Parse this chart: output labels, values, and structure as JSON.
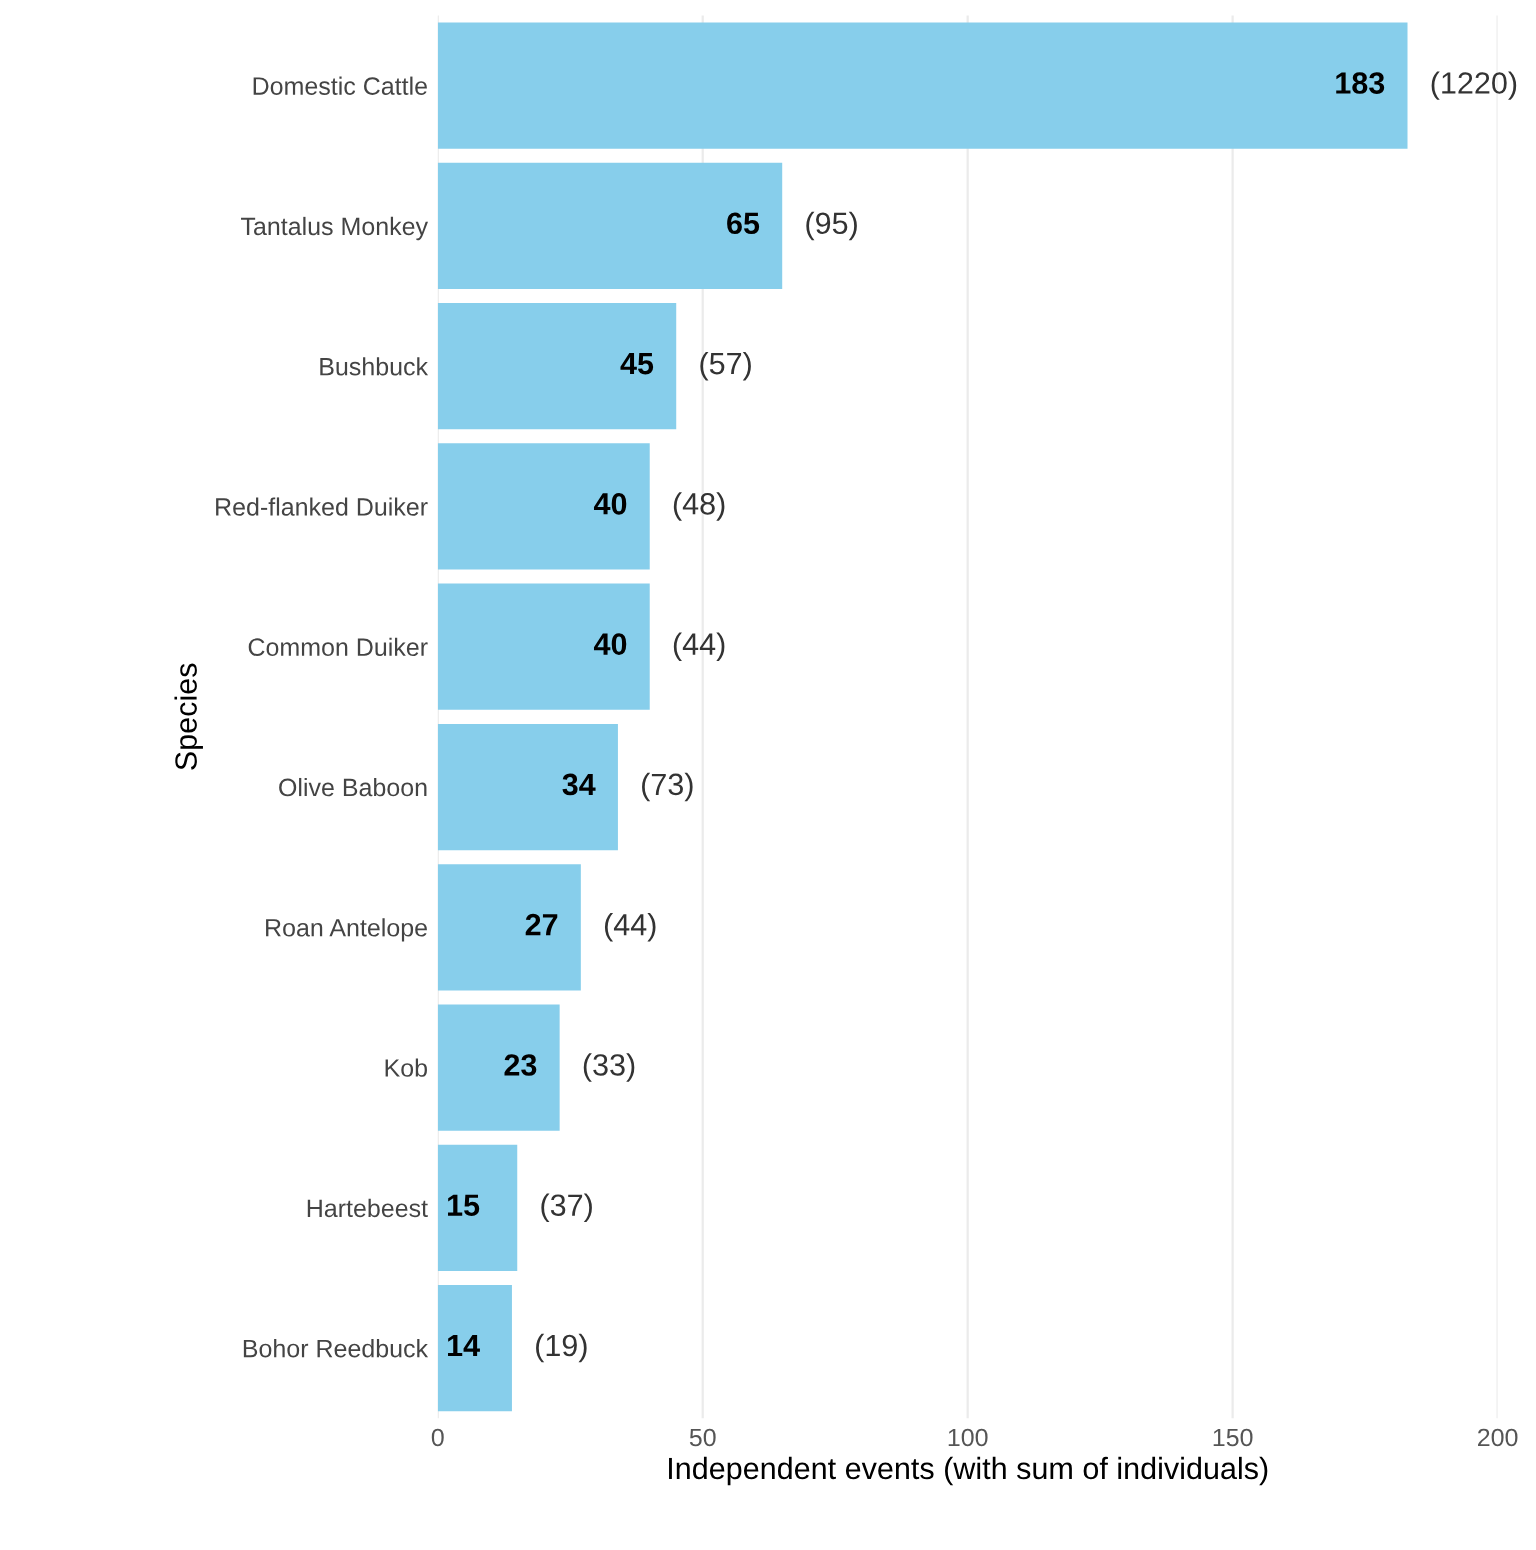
{
  "chart_data": {
    "type": "bar",
    "orientation": "horizontal",
    "categories": [
      "Domestic Cattle",
      "Tantalus Monkey",
      "Bushbuck",
      "Red-flanked Duiker",
      "Common Duiker",
      "Olive Baboon",
      "Roan Antelope",
      "Kob",
      "Hartebeest",
      "Bohor Reedbuck"
    ],
    "values": [
      183,
      65,
      45,
      40,
      40,
      34,
      27,
      23,
      15,
      14
    ],
    "color": "#87ceeb",
    "data_labels": true,
    "xlabel": "Independent events (with sum of individuals)",
    "ylabel": "Species",
    "xlim": [
      0,
      200
    ],
    "xticks": [
      0,
      50,
      100,
      150,
      200
    ],
    "grid": "x",
    "annotations": [
      {
        "text": "(1220)",
        "x": 183,
        "y": "Domestic Cattle"
      },
      {
        "text": "(95)",
        "x": 65,
        "y": "Tantalus Monkey"
      },
      {
        "text": "(57)",
        "x": 45,
        "y": "Bushbuck"
      },
      {
        "text": "(48)",
        "x": 40,
        "y": "Red-flanked Duiker"
      },
      {
        "text": "(44)",
        "x": 40,
        "y": "Common Duiker"
      },
      {
        "text": "(73)",
        "x": 34,
        "y": "Olive Baboon"
      },
      {
        "text": "(44)",
        "x": 27,
        "y": "Roan Antelope"
      },
      {
        "text": "(33)",
        "x": 23,
        "y": "Kob"
      },
      {
        "text": "(37)",
        "x": 15,
        "y": "Hartebeest"
      },
      {
        "text": "(19)",
        "x": 14,
        "y": "Bohor Reedbuck"
      }
    ]
  }
}
